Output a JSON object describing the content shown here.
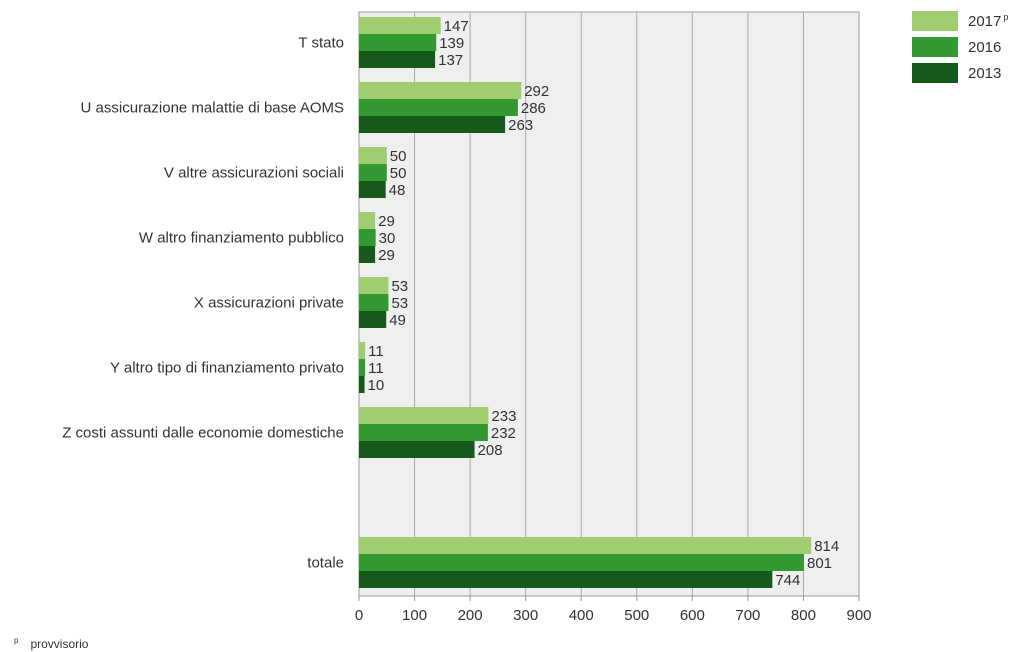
{
  "chart_data": {
    "type": "bar",
    "orientation": "horizontal",
    "categories": [
      "T stato",
      "U assicurazione malattie di base AOMS",
      "V altre assicurazioni sociali",
      "W altro finanziamento pubblico",
      "X assicurazioni private",
      "Y altro tipo di finanziamento privato",
      "Z costi assunti dalle economie domestiche",
      "totale"
    ],
    "series": [
      {
        "name": "2017",
        "name_sup": "p",
        "color": "#9fcd6f",
        "values": [
          147,
          292,
          50,
          29,
          53,
          11,
          233,
          814
        ]
      },
      {
        "name": "2016",
        "color": "#339933",
        "values": [
          139,
          286,
          50,
          30,
          53,
          11,
          232,
          801
        ]
      },
      {
        "name": "2013",
        "color": "#16591a",
        "values": [
          137,
          263,
          48,
          29,
          49,
          10,
          208,
          744
        ]
      }
    ],
    "xlim": [
      0,
      900
    ],
    "xticks": [
      0,
      100,
      200,
      300,
      400,
      500,
      600,
      700,
      800,
      900
    ],
    "grid": true,
    "legend_position": "top-right",
    "footnote": {
      "marker": "p",
      "text": "provvisorio"
    }
  }
}
